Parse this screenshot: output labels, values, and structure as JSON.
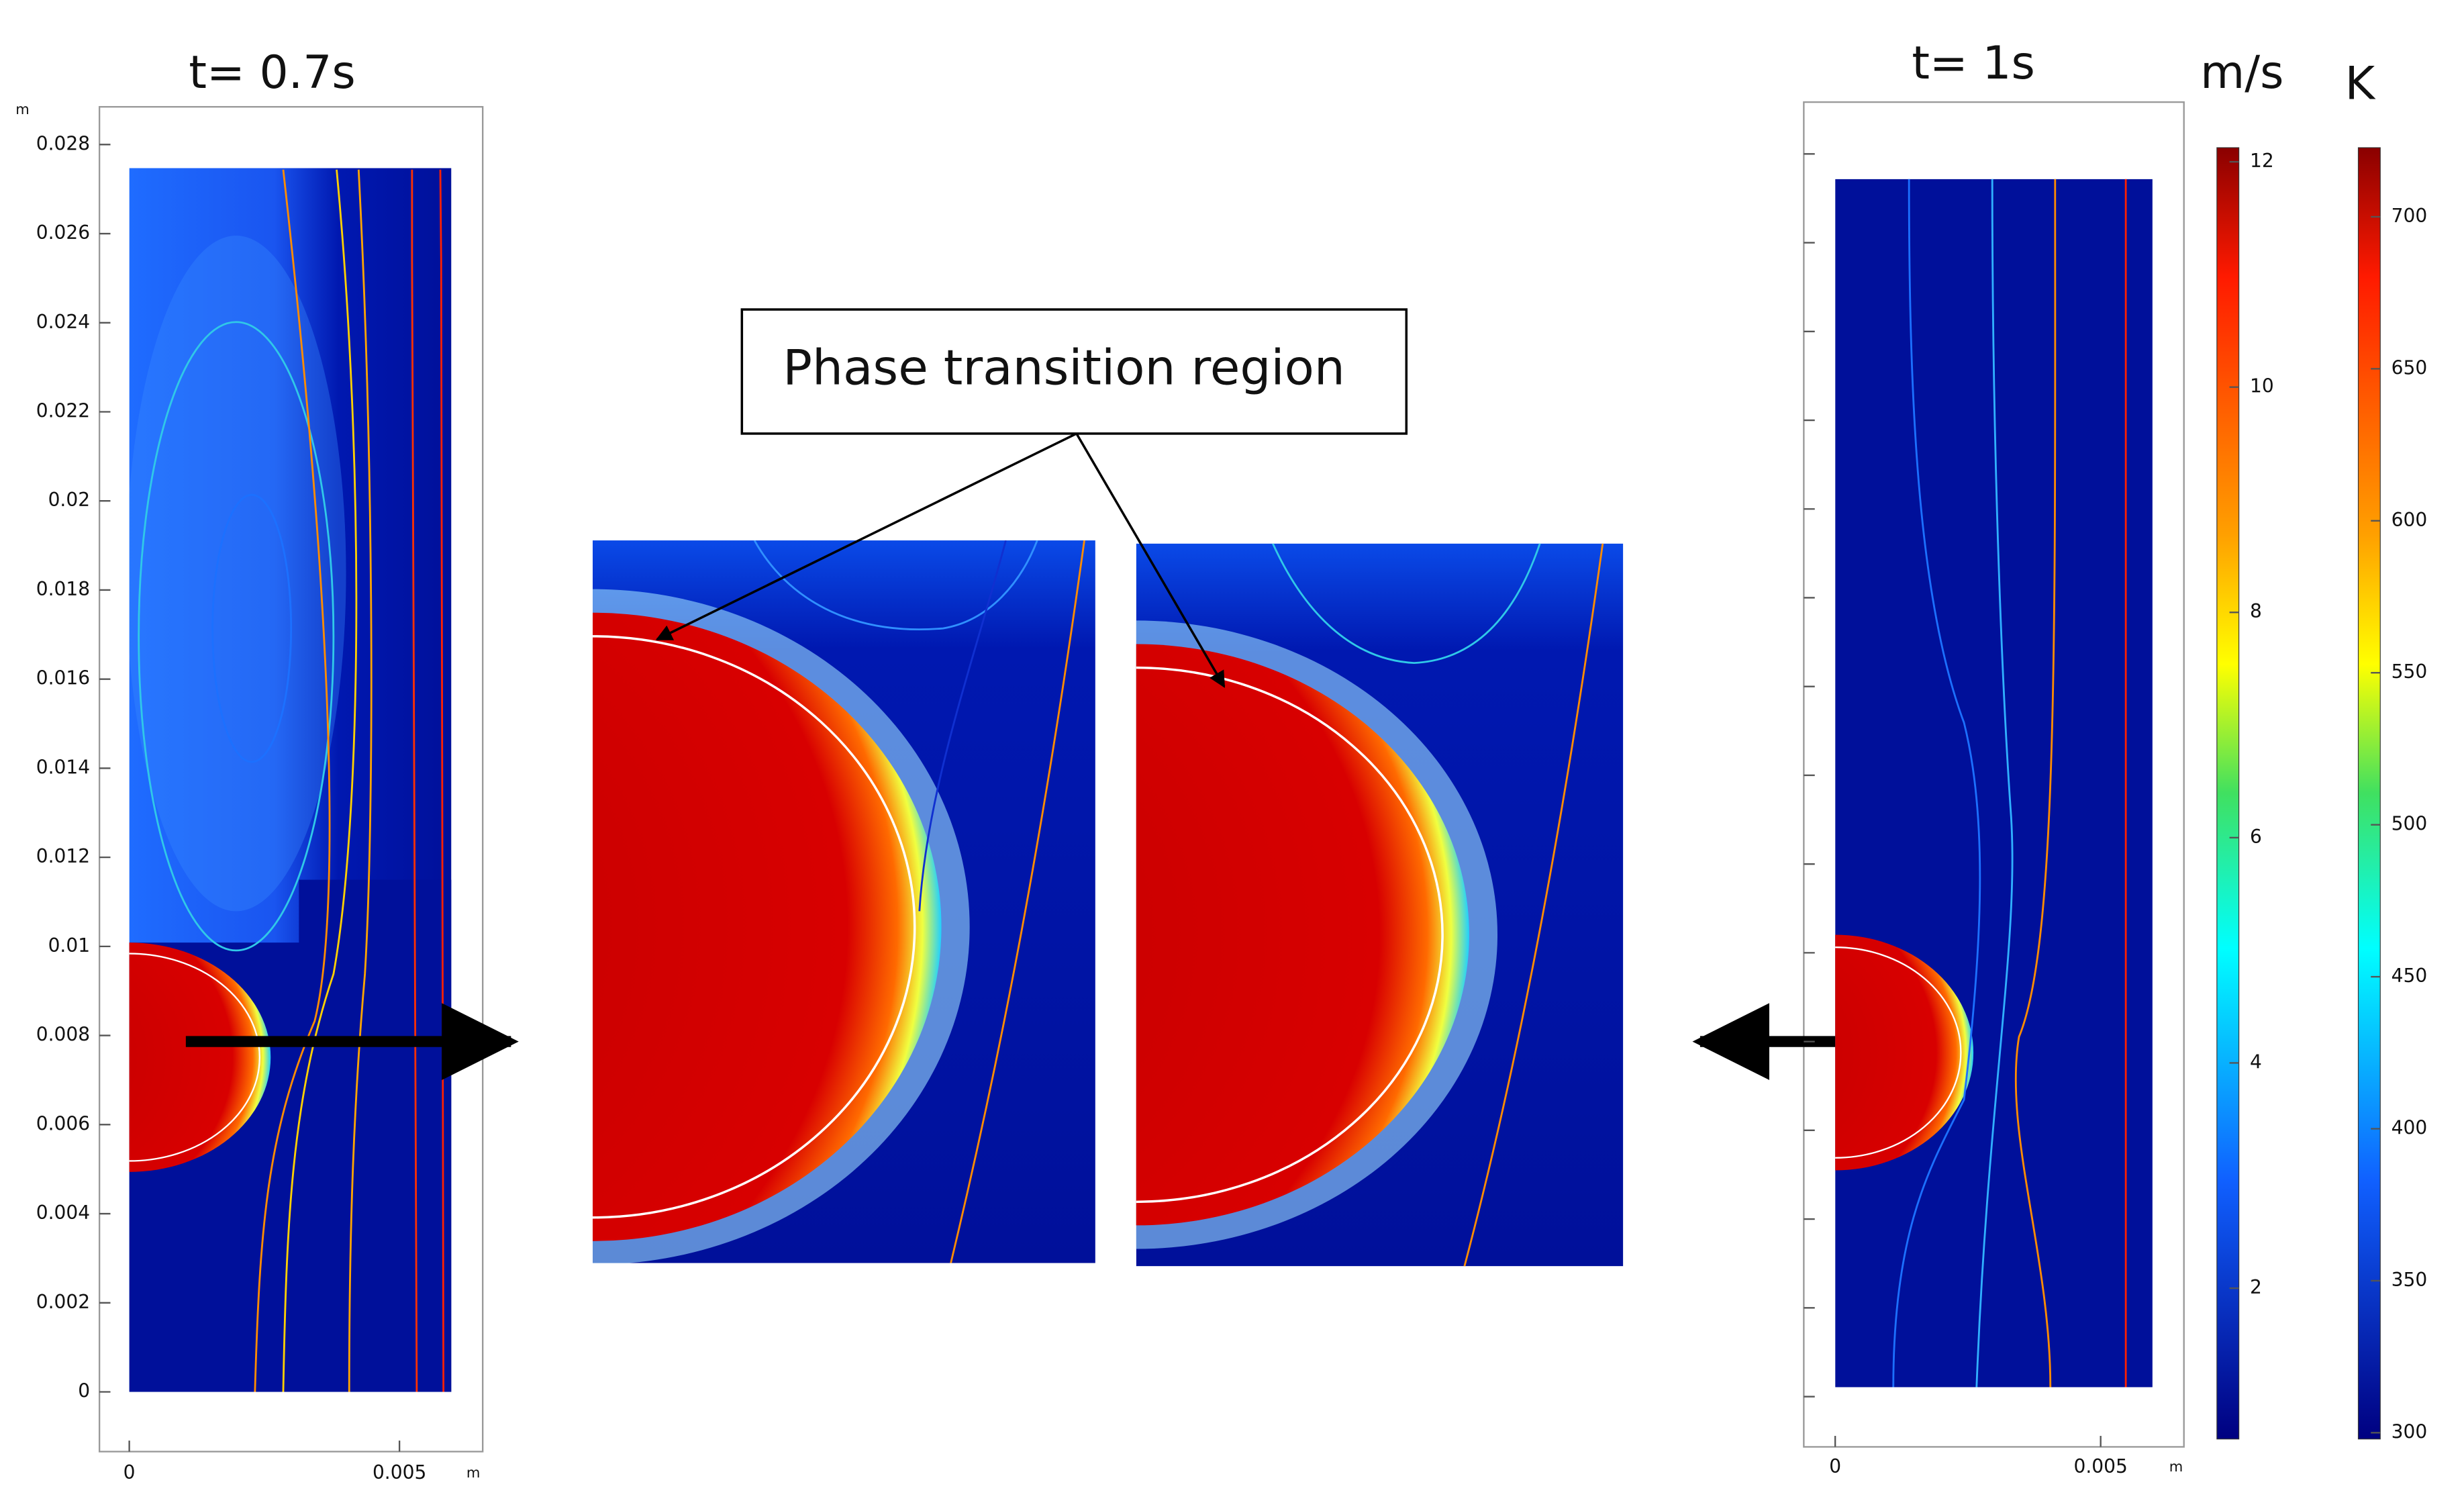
{
  "left_plot": {
    "title": "t= 0.7s",
    "y_unit": "m",
    "x_unit": "m",
    "yticks": [
      0.028,
      0.026,
      0.024,
      0.022,
      0.02,
      0.018,
      0.016,
      0.014,
      0.012,
      0.01,
      0.008,
      0.006,
      0.004,
      0.002,
      0
    ],
    "xticks": [
      0,
      0.005
    ]
  },
  "callout": {
    "text": "Phase transition region"
  },
  "right_plot": {
    "title": "t= 1s",
    "x_unit": "m",
    "xticks": [
      0,
      0.005
    ]
  },
  "velocity_colorbar": {
    "unit": "m/s",
    "ticks": [
      12,
      10,
      8,
      6,
      4,
      2
    ]
  },
  "temperature_colorbar": {
    "unit": "K",
    "ticks": [
      700,
      650,
      600,
      550,
      500,
      450,
      400,
      350,
      300
    ]
  }
}
